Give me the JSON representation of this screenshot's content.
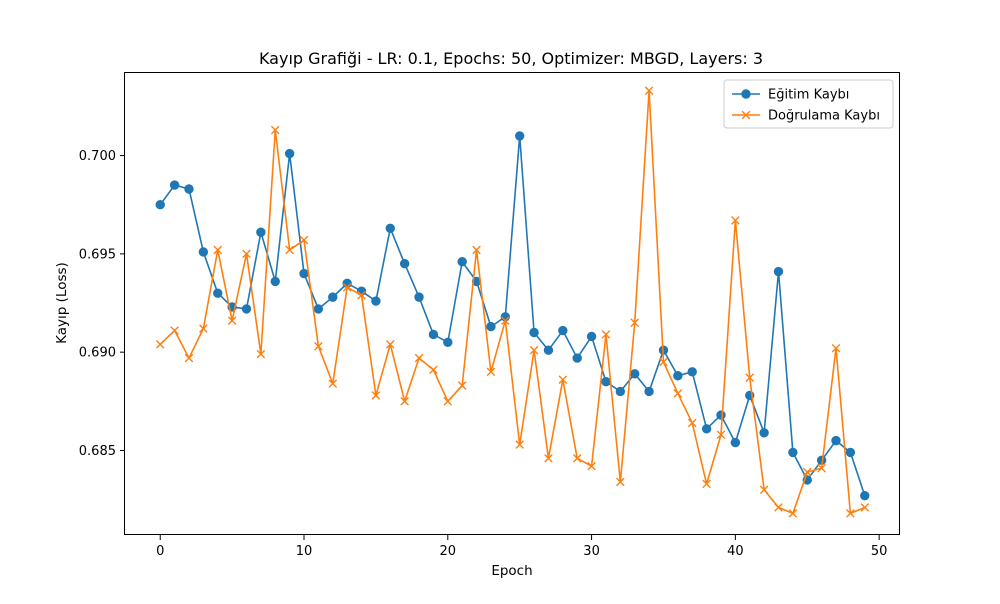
{
  "chart_data": {
    "type": "line",
    "title": "Kayıp Grafiği - LR: 0.1, Epochs: 50, Optimizer: MBGD, Layers: 3",
    "xlabel": "Epoch",
    "ylabel": "Kayıp (Loss)",
    "xlim": [
      -2.45,
      51.45
    ],
    "ylim": [
      0.6807,
      0.7042
    ],
    "x_ticks": [
      0,
      10,
      20,
      30,
      40,
      50
    ],
    "x_tick_labels": [
      "0",
      "10",
      "20",
      "30",
      "40",
      "50"
    ],
    "y_ticks": [
      0.685,
      0.69,
      0.695,
      0.7
    ],
    "y_tick_labels": [
      "0.685",
      "0.690",
      "0.695",
      "0.700"
    ],
    "grid": false,
    "legend_position": "top-right",
    "x": [
      0,
      1,
      2,
      3,
      4,
      5,
      6,
      7,
      8,
      9,
      10,
      11,
      12,
      13,
      14,
      15,
      16,
      17,
      18,
      19,
      20,
      21,
      22,
      23,
      24,
      25,
      26,
      27,
      28,
      29,
      30,
      31,
      32,
      33,
      34,
      35,
      36,
      37,
      38,
      39,
      40,
      41,
      42,
      43,
      44,
      45,
      46,
      47,
      48,
      49
    ],
    "series": [
      {
        "name": "Eğitim Kaybı",
        "color": "#1f77b4",
        "marker": "circle",
        "values": [
          0.6975,
          0.6985,
          0.6983,
          0.6951,
          0.693,
          0.6923,
          0.6922,
          0.6961,
          0.6936,
          0.7001,
          0.694,
          0.6922,
          0.6928,
          0.6935,
          0.6931,
          0.6926,
          0.6963,
          0.6945,
          0.6928,
          0.6909,
          0.6905,
          0.6946,
          0.6936,
          0.6913,
          0.6918,
          0.701,
          0.691,
          0.6901,
          0.6911,
          0.6897,
          0.6908,
          0.6885,
          0.688,
          0.6889,
          0.688,
          0.6901,
          0.6888,
          0.689,
          0.6861,
          0.6868,
          0.6854,
          0.6878,
          0.6859,
          0.6941,
          0.6849,
          0.6835,
          0.6845,
          0.6855,
          0.6849,
          0.6827
        ]
      },
      {
        "name": "Doğrulama Kaybı",
        "color": "#ff7f0e",
        "marker": "x",
        "values": [
          0.6904,
          0.6911,
          0.6897,
          0.6912,
          0.6952,
          0.6916,
          0.695,
          0.6899,
          0.7013,
          0.6952,
          0.6957,
          0.6903,
          0.6884,
          0.6933,
          0.6929,
          0.6878,
          0.6904,
          0.6875,
          0.6897,
          0.6891,
          0.6875,
          0.6883,
          0.6952,
          0.689,
          0.6916,
          0.6853,
          0.6901,
          0.6846,
          0.6886,
          0.6846,
          0.6842,
          0.6909,
          0.6834,
          0.6915,
          0.7033,
          0.6895,
          0.6879,
          0.6864,
          0.6833,
          0.6858,
          0.6967,
          0.6887,
          0.683,
          0.6821,
          0.6818,
          0.6839,
          0.6841,
          0.6902,
          0.6818,
          0.6821
        ]
      }
    ]
  }
}
